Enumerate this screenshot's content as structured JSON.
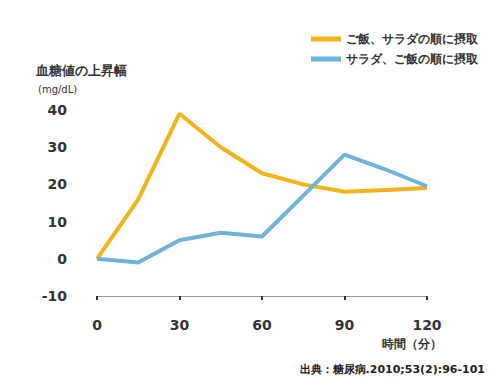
{
  "chart_data": {
    "type": "line",
    "ylabel": "血糖値の上昇幅",
    "yunit": "(mg/dL)",
    "xlabel": "時間（分）",
    "annotations": [
      "出典：糖尿病.2010;53(2):96-101"
    ],
    "x": [
      0,
      15,
      30,
      45,
      60,
      75,
      90,
      105,
      120
    ],
    "series": [
      {
        "name": "ご飯、サラダの順に摂取",
        "color": "#f5b31b",
        "marker": "none",
        "line_style": "solid",
        "values": [
          0,
          16,
          39,
          30,
          23,
          20,
          18,
          18.5,
          19
        ]
      },
      {
        "name": "サラダ、ご飯の順に摂取",
        "color": "#6cb4d9",
        "marker": "none",
        "line_style": "solid",
        "values": [
          0,
          -1,
          5,
          7,
          6,
          17,
          28,
          24,
          19.5
        ]
      }
    ],
    "xlim": [
      0,
      120
    ],
    "xticks": [
      0,
      30,
      60,
      90,
      120
    ],
    "ylim": [
      -10,
      40
    ],
    "yticks": [
      -10,
      0,
      10,
      20,
      30,
      40
    ],
    "grid": false,
    "legend": "upper right"
  }
}
